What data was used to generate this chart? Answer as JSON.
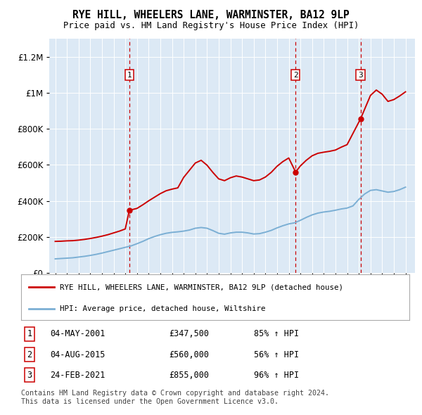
{
  "title": "RYE HILL, WHEELERS LANE, WARMINSTER, BA12 9LP",
  "subtitle": "Price paid vs. HM Land Registry's House Price Index (HPI)",
  "legend_line1": "RYE HILL, WHEELERS LANE, WARMINSTER, BA12 9LP (detached house)",
  "legend_line2": "HPI: Average price, detached house, Wiltshire",
  "footnote": "Contains HM Land Registry data © Crown copyright and database right 2024.\nThis data is licensed under the Open Government Licence v3.0.",
  "transactions": [
    {
      "num": 1,
      "date": "04-MAY-2001",
      "price": 347500,
      "pct": "85%",
      "year": 2001.35
    },
    {
      "num": 2,
      "date": "04-AUG-2015",
      "price": 560000,
      "pct": "56%",
      "year": 2015.59
    },
    {
      "num": 3,
      "date": "24-FEB-2021",
      "price": 855000,
      "pct": "96%",
      "year": 2021.15
    }
  ],
  "ylim": [
    0,
    1300000
  ],
  "yticks": [
    0,
    200000,
    400000,
    600000,
    800000,
    1000000,
    1200000
  ],
  "xlim_start": 1994.5,
  "xlim_end": 2025.8,
  "red_line_color": "#cc0000",
  "blue_line_color": "#7bafd4",
  "dashed_vline_color": "#cc0000",
  "plot_bg_color": "#dce9f5",
  "hpi_x": [
    1995,
    1995.5,
    1996,
    1996.5,
    1997,
    1997.5,
    1998,
    1998.5,
    1999,
    1999.5,
    2000,
    2000.5,
    2001,
    2001.5,
    2002,
    2002.5,
    2003,
    2003.5,
    2004,
    2004.5,
    2005,
    2005.5,
    2006,
    2006.5,
    2007,
    2007.5,
    2008,
    2008.5,
    2009,
    2009.5,
    2010,
    2010.5,
    2011,
    2011.5,
    2012,
    2012.5,
    2013,
    2013.5,
    2014,
    2014.5,
    2015,
    2015.5,
    2016,
    2016.5,
    2017,
    2017.5,
    2018,
    2018.5,
    2019,
    2019.5,
    2020,
    2020.5,
    2021,
    2021.5,
    2022,
    2022.5,
    2023,
    2023.5,
    2024,
    2024.5,
    2025
  ],
  "hpi_y": [
    78000,
    80000,
    82000,
    84000,
    88000,
    92000,
    97000,
    103000,
    110000,
    118000,
    126000,
    134000,
    142000,
    150000,
    162000,
    175000,
    190000,
    202000,
    212000,
    220000,
    225000,
    228000,
    232000,
    238000,
    248000,
    252000,
    248000,
    235000,
    220000,
    215000,
    222000,
    226000,
    226000,
    222000,
    216000,
    218000,
    226000,
    236000,
    250000,
    262000,
    272000,
    278000,
    292000,
    308000,
    322000,
    332000,
    338000,
    342000,
    348000,
    355000,
    360000,
    372000,
    408000,
    438000,
    458000,
    462000,
    455000,
    448000,
    452000,
    462000,
    476000
  ],
  "price_x": [
    1995,
    1995.5,
    1996,
    1996.5,
    1997,
    1997.5,
    1998,
    1998.5,
    1999,
    1999.5,
    2000,
    2000.5,
    2001,
    2001.35,
    2002,
    2002.5,
    2003,
    2003.5,
    2004,
    2004.5,
    2005,
    2005.5,
    2006,
    2006.5,
    2007,
    2007.5,
    2008,
    2008.5,
    2009,
    2009.5,
    2010,
    2010.5,
    2011,
    2011.5,
    2012,
    2012.5,
    2013,
    2013.5,
    2014,
    2014.5,
    2015,
    2015.59,
    2016,
    2016.5,
    2017,
    2017.5,
    2018,
    2018.5,
    2019,
    2019.5,
    2020,
    2021.15,
    2022,
    2022.5,
    2023,
    2023.5,
    2024,
    2024.5,
    2025
  ],
  "price_y": [
    175000,
    176000,
    178000,
    179000,
    182000,
    186000,
    191000,
    197000,
    204000,
    212000,
    222000,
    232000,
    244000,
    347500,
    358000,
    378000,
    400000,
    420000,
    440000,
    456000,
    465000,
    472000,
    530000,
    570000,
    610000,
    625000,
    598000,
    558000,
    522000,
    512000,
    528000,
    538000,
    532000,
    522000,
    512000,
    516000,
    532000,
    558000,
    592000,
    618000,
    638000,
    560000,
    594000,
    625000,
    650000,
    664000,
    670000,
    675000,
    682000,
    698000,
    712000,
    855000,
    985000,
    1015000,
    992000,
    952000,
    962000,
    982000,
    1005000
  ]
}
